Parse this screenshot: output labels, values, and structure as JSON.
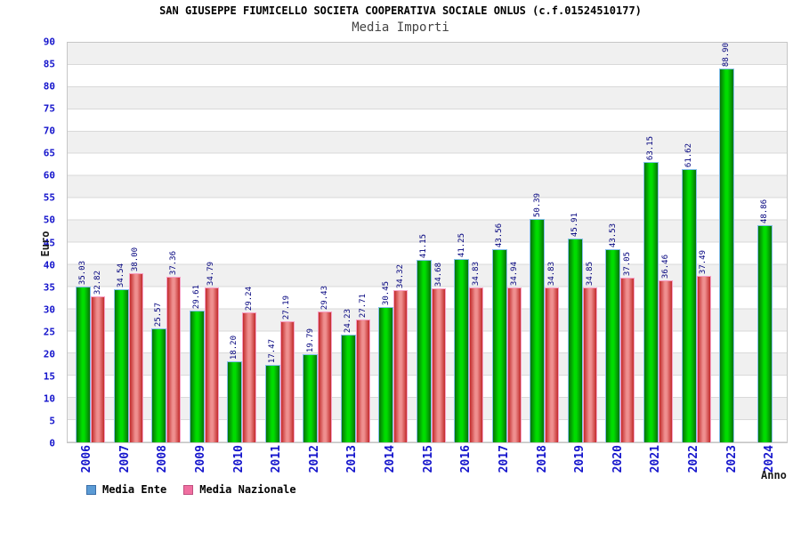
{
  "header": {
    "title": "SAN GIUSEPPE FIUMICELLO SOCIETA COOPERATIVA SOCIALE ONLUS (c.f.01524510177)",
    "subtitle": "Media Importi"
  },
  "axes": {
    "y_label": "Euro",
    "x_label": "Anno"
  },
  "legend": {
    "items": [
      {
        "label": "Media Ente",
        "swatch_fill": "#5b9bd5",
        "swatch_border": "#3a6ea8"
      },
      {
        "label": "Media Nazionale",
        "swatch_fill": "#f06fa0",
        "swatch_border": "#c05080"
      }
    ]
  },
  "chart_data": {
    "type": "bar",
    "title": "SAN GIUSEPPE FIUMICELLO SOCIETA COOPERATIVA SOCIALE ONLUS (c.f.01524510177)",
    "subtitle": "Media Importi",
    "xlabel": "Anno",
    "ylabel": "Euro",
    "ylim": [
      0,
      90
    ],
    "ytick_step": 5,
    "grid": "horizontal-bands",
    "legend_position": "bottom-left",
    "value_label_format": "0.00",
    "categories": [
      "2006",
      "2007",
      "2008",
      "2009",
      "2010",
      "2011",
      "2012",
      "2013",
      "2014",
      "2015",
      "2016",
      "2017",
      "2018",
      "2019",
      "2020",
      "2021",
      "2022",
      "2023",
      "2024"
    ],
    "series": [
      {
        "name": "Media Ente",
        "values": [
          35.03,
          34.54,
          25.57,
          29.61,
          18.2,
          17.47,
          19.79,
          24.23,
          30.45,
          41.15,
          41.25,
          43.56,
          50.39,
          45.91,
          43.53,
          63.15,
          61.62,
          88.9,
          48.86
        ]
      },
      {
        "name": "Media Nazionale",
        "values": [
          32.82,
          38.0,
          37.36,
          34.79,
          29.24,
          27.19,
          29.43,
          27.71,
          34.32,
          34.68,
          34.83,
          34.94,
          34.83,
          34.85,
          37.05,
          36.46,
          37.49,
          null,
          null
        ]
      }
    ]
  },
  "colors": {
    "bar_green_edge": "#077307",
    "bar_green_center": "#00dc00",
    "bar_green_border": "#85bfea",
    "bar_red_edge": "#c22b2b",
    "bar_red_center": "#ef8f8f",
    "bar_red_border": "#f79fc4",
    "tick_label_blue": "#1414cc",
    "value_label_navy": "#00007d",
    "band_gray": "#f0f0f0",
    "grid_line": "#d9d9d9",
    "plot_border": "#c6c6c6"
  }
}
